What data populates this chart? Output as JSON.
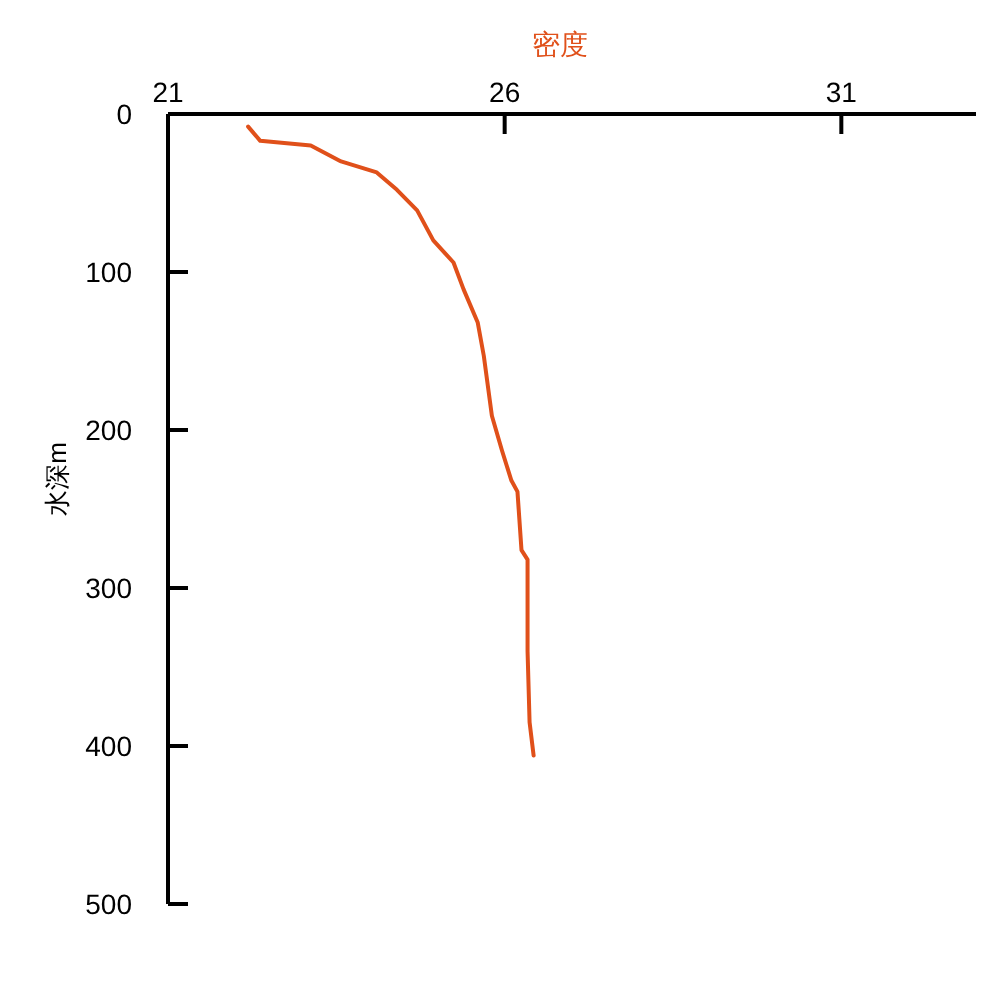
{
  "chart_data": {
    "type": "line",
    "xlabel": "密度",
    "ylabel": "水深m",
    "xlim": [
      21,
      33
    ],
    "xticks": [
      21,
      26,
      31
    ],
    "ylim": [
      500,
      0
    ],
    "yticks": [
      0,
      100,
      200,
      300,
      400,
      500
    ],
    "grid": false,
    "marker": "none",
    "line_style": "solid",
    "series": [
      {
        "color": "#e0501a",
        "x": [
          22.19,
          22.37,
          23.12,
          23.57,
          24.1,
          24.4,
          24.7,
          24.94,
          25.24,
          25.39,
          25.6,
          25.69,
          25.81,
          25.96,
          26.1,
          26.19,
          26.25,
          26.34,
          26.34,
          26.37,
          26.43
        ],
        "values": [
          8,
          17,
          20,
          30,
          37,
          48,
          61,
          80,
          94,
          111,
          132,
          153,
          191,
          213,
          232,
          239,
          276,
          282,
          340,
          385,
          406
        ]
      }
    ]
  }
}
